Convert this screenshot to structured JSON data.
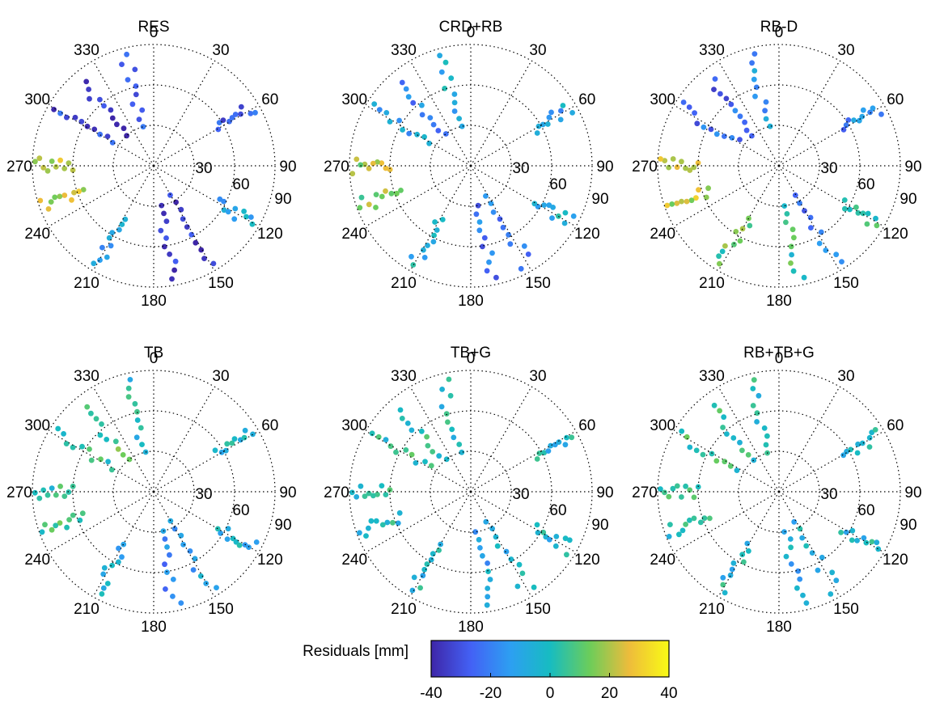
{
  "chart_data": [
    {
      "type": "scatter",
      "subtype": "polar-skyplot",
      "title": "RES",
      "azimuth_ticks": [
        "0",
        "30",
        "60",
        "90",
        "120",
        "150",
        "180",
        "210",
        "240",
        "270",
        "300",
        "330"
      ],
      "radial_ticks": [
        "30",
        "60",
        "90"
      ],
      "radial_range": [
        0,
        90
      ],
      "grid": true,
      "tracks": [
        {
          "azimuth": 250,
          "zenith": [
            55,
            88
          ],
          "residual": 20
        },
        {
          "azimuth": 270,
          "zenith": [
            60,
            88
          ],
          "residual": 22
        },
        {
          "azimuth": 300,
          "zenith": [
            35,
            85
          ],
          "residual": -30
        },
        {
          "azimuth": 320,
          "zenith": [
            30,
            80
          ],
          "residual": -35
        },
        {
          "azimuth": 345,
          "zenith": [
            30,
            85
          ],
          "residual": -30
        },
        {
          "azimuth": 60,
          "zenith": [
            55,
            85
          ],
          "residual": -30
        },
        {
          "azimuth": 150,
          "zenith": [
            25,
            85
          ],
          "residual": -35
        },
        {
          "azimuth": 170,
          "zenith": [
            30,
            85
          ],
          "residual": -35
        },
        {
          "azimuth": 120,
          "zenith": [
            55,
            85
          ],
          "residual": -10
        },
        {
          "azimuth": 210,
          "zenith": [
            45,
            85
          ],
          "residual": -10
        }
      ]
    },
    {
      "type": "scatter",
      "subtype": "polar-skyplot",
      "title": "CRD+RB",
      "azimuth_ticks": [
        "0",
        "30",
        "60",
        "90",
        "120",
        "150",
        "180",
        "210",
        "240",
        "270",
        "300",
        "330"
      ],
      "radial_ticks": [
        "30",
        "60",
        "90"
      ],
      "radial_range": [
        0,
        90
      ],
      "grid": true,
      "tracks": [
        {
          "azimuth": 250,
          "zenith": [
            55,
            88
          ],
          "residual": 15
        },
        {
          "azimuth": 270,
          "zenith": [
            60,
            88
          ],
          "residual": 18
        },
        {
          "azimuth": 300,
          "zenith": [
            35,
            85
          ],
          "residual": -12
        },
        {
          "azimuth": 320,
          "zenith": [
            30,
            80
          ],
          "residual": -18
        },
        {
          "azimuth": 345,
          "zenith": [
            30,
            85
          ],
          "residual": -8
        },
        {
          "azimuth": 60,
          "zenith": [
            55,
            85
          ],
          "residual": -10
        },
        {
          "azimuth": 150,
          "zenith": [
            25,
            85
          ],
          "residual": -20
        },
        {
          "azimuth": 170,
          "zenith": [
            30,
            85
          ],
          "residual": -22
        },
        {
          "azimuth": 120,
          "zenith": [
            55,
            85
          ],
          "residual": -5
        },
        {
          "azimuth": 210,
          "zenith": [
            45,
            85
          ],
          "residual": -5
        }
      ]
    },
    {
      "type": "scatter",
      "subtype": "polar-skyplot",
      "title": "RB-D",
      "azimuth_ticks": [
        "0",
        "30",
        "60",
        "90",
        "120",
        "150",
        "180",
        "210",
        "240",
        "270",
        "300",
        "330"
      ],
      "radial_ticks": [
        "30",
        "60",
        "90"
      ],
      "radial_range": [
        0,
        90
      ],
      "grid": true,
      "tracks": [
        {
          "azimuth": 250,
          "zenith": [
            55,
            88
          ],
          "residual": 22
        },
        {
          "azimuth": 270,
          "zenith": [
            60,
            88
          ],
          "residual": 20
        },
        {
          "azimuth": 300,
          "zenith": [
            35,
            85
          ],
          "residual": -22
        },
        {
          "azimuth": 320,
          "zenith": [
            30,
            80
          ],
          "residual": -25
        },
        {
          "azimuth": 345,
          "zenith": [
            30,
            85
          ],
          "residual": -12
        },
        {
          "azimuth": 60,
          "zenith": [
            55,
            85
          ],
          "residual": -18
        },
        {
          "azimuth": 150,
          "zenith": [
            25,
            85
          ],
          "residual": -20
        },
        {
          "azimuth": 170,
          "zenith": [
            30,
            85
          ],
          "residual": 5
        },
        {
          "azimuth": 120,
          "zenith": [
            55,
            85
          ],
          "residual": 5
        },
        {
          "azimuth": 210,
          "zenith": [
            45,
            85
          ],
          "residual": 10
        }
      ]
    },
    {
      "type": "scatter",
      "subtype": "polar-skyplot",
      "title": "TB",
      "azimuth_ticks": [
        "0",
        "30",
        "60",
        "90",
        "120",
        "150",
        "180",
        "210",
        "240",
        "270",
        "300",
        "330"
      ],
      "radial_ticks": [
        "30",
        "60",
        "90"
      ],
      "radial_range": [
        0,
        90
      ],
      "grid": true,
      "tracks": [
        {
          "azimuth": 250,
          "zenith": [
            55,
            88
          ],
          "residual": 5
        },
        {
          "azimuth": 270,
          "zenith": [
            60,
            88
          ],
          "residual": 3
        },
        {
          "azimuth": 300,
          "zenith": [
            35,
            85
          ],
          "residual": 5
        },
        {
          "azimuth": 320,
          "zenith": [
            30,
            80
          ],
          "residual": 8
        },
        {
          "azimuth": 345,
          "zenith": [
            30,
            85
          ],
          "residual": 0
        },
        {
          "azimuth": 60,
          "zenith": [
            55,
            85
          ],
          "residual": -2
        },
        {
          "azimuth": 150,
          "zenith": [
            25,
            85
          ],
          "residual": -12
        },
        {
          "azimuth": 170,
          "zenith": [
            30,
            85
          ],
          "residual": -18
        },
        {
          "azimuth": 120,
          "zenith": [
            55,
            85
          ],
          "residual": -5
        },
        {
          "azimuth": 210,
          "zenith": [
            45,
            85
          ],
          "residual": -5
        }
      ]
    },
    {
      "type": "scatter",
      "subtype": "polar-skyplot",
      "title": "TB+G",
      "azimuth_ticks": [
        "0",
        "30",
        "60",
        "90",
        "120",
        "150",
        "180",
        "210",
        "240",
        "270",
        "300",
        "330"
      ],
      "radial_ticks": [
        "30",
        "60",
        "90"
      ],
      "radial_range": [
        0,
        90
      ],
      "grid": true,
      "tracks": [
        {
          "azimuth": 250,
          "zenith": [
            55,
            88
          ],
          "residual": 0
        },
        {
          "azimuth": 270,
          "zenith": [
            60,
            88
          ],
          "residual": 2
        },
        {
          "azimuth": 300,
          "zenith": [
            35,
            85
          ],
          "residual": 3
        },
        {
          "azimuth": 320,
          "zenith": [
            30,
            80
          ],
          "residual": 2
        },
        {
          "azimuth": 345,
          "zenith": [
            30,
            85
          ],
          "residual": 0
        },
        {
          "azimuth": 60,
          "zenith": [
            55,
            85
          ],
          "residual": -3
        },
        {
          "azimuth": 150,
          "zenith": [
            25,
            85
          ],
          "residual": -6
        },
        {
          "azimuth": 170,
          "zenith": [
            30,
            85
          ],
          "residual": -10
        },
        {
          "azimuth": 120,
          "zenith": [
            55,
            85
          ],
          "residual": -3
        },
        {
          "azimuth": 210,
          "zenith": [
            45,
            85
          ],
          "residual": -3
        }
      ]
    },
    {
      "type": "scatter",
      "subtype": "polar-skyplot",
      "title": "RB+TB+G",
      "azimuth_ticks": [
        "0",
        "30",
        "60",
        "90",
        "120",
        "150",
        "180",
        "210",
        "240",
        "270",
        "300",
        "330"
      ],
      "radial_ticks": [
        "30",
        "60",
        "90"
      ],
      "radial_range": [
        0,
        90
      ],
      "grid": true,
      "tracks": [
        {
          "azimuth": 250,
          "zenith": [
            55,
            88
          ],
          "residual": 3
        },
        {
          "azimuth": 270,
          "zenith": [
            60,
            88
          ],
          "residual": 4
        },
        {
          "azimuth": 300,
          "zenith": [
            35,
            85
          ],
          "residual": 4
        },
        {
          "azimuth": 320,
          "zenith": [
            30,
            80
          ],
          "residual": 3
        },
        {
          "azimuth": 345,
          "zenith": [
            30,
            85
          ],
          "residual": 1
        },
        {
          "azimuth": 60,
          "zenith": [
            55,
            85
          ],
          "residual": -2
        },
        {
          "azimuth": 150,
          "zenith": [
            25,
            85
          ],
          "residual": -5
        },
        {
          "azimuth": 170,
          "zenith": [
            30,
            85
          ],
          "residual": -8
        },
        {
          "azimuth": 120,
          "zenith": [
            55,
            85
          ],
          "residual": -2
        },
        {
          "azimuth": 210,
          "zenith": [
            45,
            85
          ],
          "residual": -2
        }
      ]
    }
  ],
  "colorbar": {
    "label": "Residuals [mm]",
    "range": [
      -40,
      40
    ],
    "ticks": [
      "-40",
      "-20",
      "0",
      "20",
      "40"
    ],
    "colormap": [
      "#3e26a8",
      "#4361f5",
      "#2d9ff2",
      "#17bcc1",
      "#6ccd5a",
      "#eebc3b",
      "#f9fb15"
    ]
  }
}
